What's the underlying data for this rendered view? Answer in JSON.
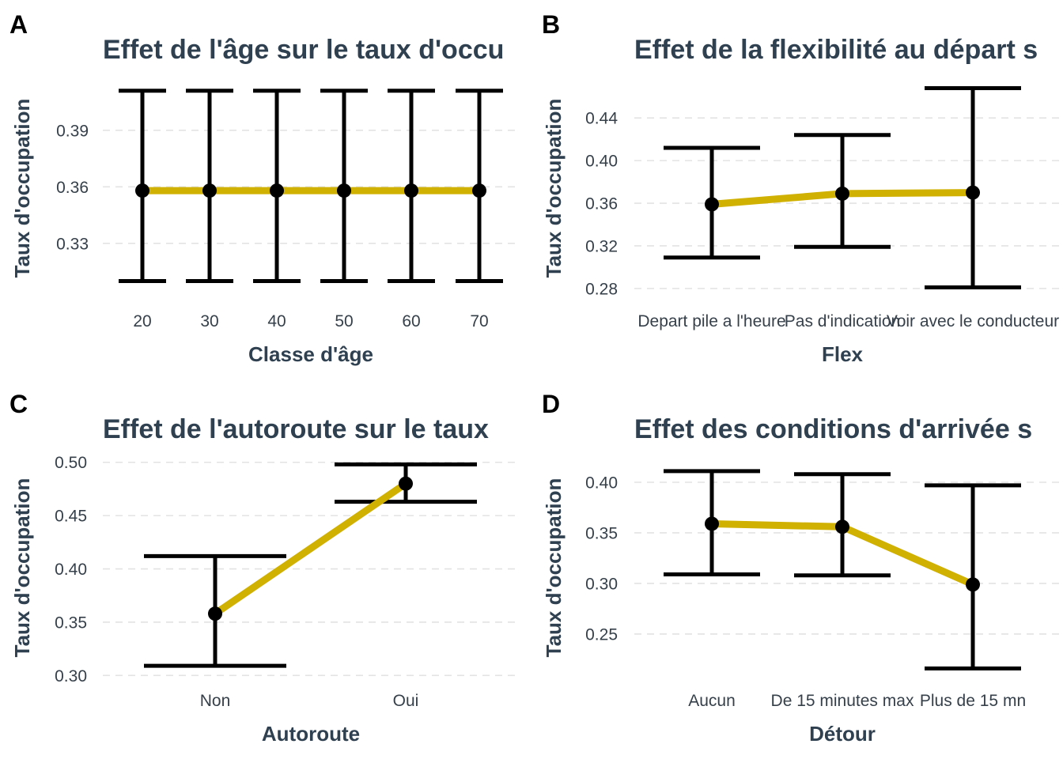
{
  "colors": {
    "line": "#d0b000",
    "point": "#000000",
    "errorbar": "#000000",
    "title": "#2f4050",
    "grid": "#e3e3e3"
  },
  "chart_data": [
    {
      "type": "line",
      "panel": "A",
      "title": "Effet de l'âge sur le taux d'occu",
      "xlabel": "Classe d'âge",
      "ylabel": "Taux d'occupation",
      "categories": [
        "20",
        "30",
        "40",
        "50",
        "60",
        "70"
      ],
      "values": [
        0.358,
        0.358,
        0.358,
        0.358,
        0.358,
        0.358
      ],
      "lower": [
        0.31,
        0.31,
        0.31,
        0.31,
        0.31,
        0.31
      ],
      "upper": [
        0.411,
        0.411,
        0.411,
        0.411,
        0.411,
        0.411
      ],
      "ylim": [
        0.301,
        0.418
      ],
      "yticks": [
        0.33,
        0.36,
        0.39
      ],
      "ytick_labels": [
        "0.33",
        "0.36",
        "0.39"
      ],
      "grid": "horizontal dashed"
    },
    {
      "type": "line",
      "panel": "B",
      "title": "Effet de la flexibilité au départ s",
      "xlabel": "Flex",
      "ylabel": "Taux d'occupation",
      "categories": [
        "Depart pile a l'heure",
        "Pas d'indication",
        "Voir avec le conducteur"
      ],
      "values": [
        0.359,
        0.369,
        0.37
      ],
      "lower": [
        0.309,
        0.319,
        0.281
      ],
      "upper": [
        0.412,
        0.424,
        0.468
      ],
      "ylim": [
        0.271,
        0.478
      ],
      "yticks": [
        0.28,
        0.32,
        0.36,
        0.4,
        0.44
      ],
      "ytick_labels": [
        "0.28",
        "0.32",
        "0.36",
        "0.40",
        "0.44"
      ],
      "grid": "horizontal dashed"
    },
    {
      "type": "line",
      "panel": "C",
      "title": "Effet de l'autoroute sur le taux",
      "xlabel": "Autoroute",
      "ylabel": "Taux d'occupation",
      "categories": [
        "Non",
        "Oui"
      ],
      "values": [
        0.358,
        0.48
      ],
      "lower": [
        0.309,
        0.463
      ],
      "upper": [
        0.412,
        0.498
      ],
      "ylim": [
        0.298,
        0.505
      ],
      "yticks": [
        0.3,
        0.35,
        0.4,
        0.45,
        0.5
      ],
      "ytick_labels": [
        "0.30",
        "0.35",
        "0.40",
        "0.45",
        "0.50"
      ],
      "grid": "horizontal dashed"
    },
    {
      "type": "line",
      "panel": "D",
      "title": "Effet des conditions d'arrivée s",
      "xlabel": "Détour",
      "ylabel": "Taux d'occupation",
      "categories": [
        "Aucun",
        "De 15 minutes max",
        "Plus de 15 mn"
      ],
      "values": [
        0.359,
        0.356,
        0.299
      ],
      "lower": [
        0.309,
        0.308,
        0.216
      ],
      "upper": [
        0.411,
        0.408,
        0.397
      ],
      "ylim": [
        0.207,
        0.425
      ],
      "yticks": [
        0.25,
        0.3,
        0.35,
        0.4
      ],
      "ytick_labels": [
        "0.25",
        "0.30",
        "0.35",
        "0.40"
      ],
      "grid": "horizontal dashed"
    }
  ]
}
